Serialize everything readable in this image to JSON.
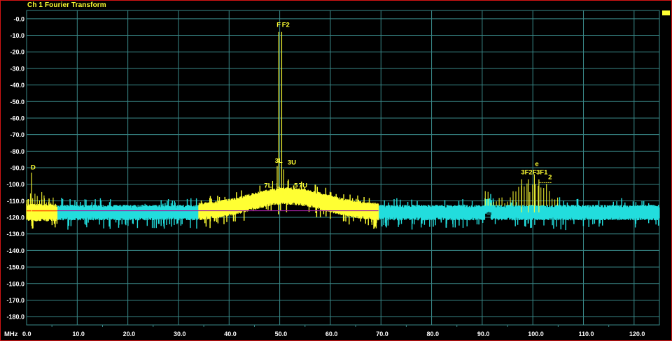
{
  "window": {
    "title": "Ch 1 Fourier Transform",
    "frame_color": "#d21414"
  },
  "colors": {
    "grid": "#3a8a8a",
    "axis_text": "#ffffff",
    "trace_highlight": "#ffff33",
    "trace_base": "#22dddd",
    "reference_line": "#a020a0",
    "marker": "#ffff33"
  },
  "chart_data": {
    "type": "line",
    "title": "Ch 1 Fourier Transform",
    "xlabel": "MHz",
    "ylabel": "",
    "xlim": [
      0,
      125
    ],
    "ylim": [
      -185,
      5
    ],
    "x_ticks": [
      0,
      10,
      20,
      30,
      40,
      50,
      60,
      70,
      80,
      90,
      100,
      110,
      120
    ],
    "x_tick_labels": [
      "0.0",
      "10.0",
      "20.0",
      "30.0",
      "40.0",
      "50.0",
      "60.0",
      "70.0",
      "80.0",
      "90.0",
      "100.0",
      "110.0",
      "120.0"
    ],
    "y_ticks": [
      0,
      -10,
      -20,
      -30,
      -40,
      -50,
      -60,
      -70,
      -80,
      -90,
      -100,
      -110,
      -120,
      -130,
      -140,
      -150,
      -160,
      -170,
      -180
    ],
    "y_tick_labels": [
      "-0.0",
      "-10.0",
      "-20.0",
      "-30.0",
      "-40.0",
      "-50.0",
      "-60.0",
      "-70.0",
      "-80.0",
      "-90.0",
      "-100.0",
      "-110.0",
      "-120.0",
      "-130.0",
      "-140.0",
      "-150.0",
      "-160.0",
      "-170.0",
      "-180.0"
    ],
    "grid": true,
    "noise_floor_db": -117,
    "reference_level_db": -116,
    "highlighted_bands_mhz": [
      [
        0,
        6
      ],
      [
        34,
        69.5
      ]
    ],
    "hump": {
      "center_mhz": 51.5,
      "peak_db": -107,
      "start_mhz": 34,
      "end_mhz": 69.5
    },
    "series": [
      {
        "values": [
          {
            "x": 49.8,
            "y": -8
          },
          {
            "x": 50.4,
            "y": -8
          },
          {
            "x": 48.6,
            "y": -98
          },
          {
            "x": 49.5,
            "y": -89
          },
          {
            "x": 51.6,
            "y": -98
          },
          {
            "x": 50.8,
            "y": -91
          },
          {
            "x": 1.0,
            "y": -93
          },
          {
            "x": 97.8,
            "y": -97
          },
          {
            "x": 99.1,
            "y": -97
          },
          {
            "x": 100.3,
            "y": -94
          },
          {
            "x": 101.2,
            "y": -97
          }
        ]
      }
    ],
    "markers": [
      {
        "label": "F",
        "x": 49.8,
        "y": -5
      },
      {
        "label": "F2",
        "x": 51.2,
        "y": -5
      },
      {
        "label": "3L",
        "x": 49.8,
        "y": -87
      },
      {
        "label": "3U",
        "x": 52.4,
        "y": -88
      },
      {
        "label": "7L",
        "x": 47.7,
        "y": -102
      },
      {
        "label": "L",
        "x": 49.7,
        "y": -102
      },
      {
        "label": "5",
        "x": 53.2,
        "y": -102
      },
      {
        "label": "7U",
        "x": 54.6,
        "y": -102
      },
      {
        "label": "D",
        "x": 1.3,
        "y": -91
      },
      {
        "label": "3F2F",
        "x": 99.2,
        "y": -94
      },
      {
        "label": "3F1",
        "x": 101.8,
        "y": -94
      },
      {
        "label": "2",
        "x": 103.4,
        "y": -97
      },
      {
        "label": "e",
        "x": 100.8,
        "y": -89
      }
    ]
  }
}
